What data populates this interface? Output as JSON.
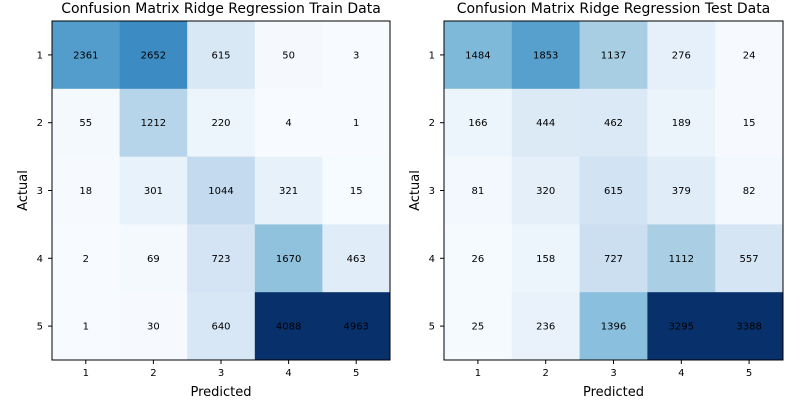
{
  "chart_data": [
    {
      "type": "heatmap",
      "title": "Confusion Matrix Ridge Regression Train Data",
      "xlabel": "Predicted",
      "ylabel": "Actual",
      "x_categories": [
        "1",
        "2",
        "3",
        "4",
        "5"
      ],
      "y_categories": [
        "1",
        "2",
        "3",
        "4",
        "5"
      ],
      "values": [
        [
          2361,
          2652,
          615,
          50,
          3
        ],
        [
          55,
          1212,
          220,
          4,
          1
        ],
        [
          18,
          301,
          1044,
          321,
          15
        ],
        [
          2,
          69,
          723,
          1670,
          463
        ],
        [
          1,
          30,
          640,
          4088,
          4963
        ]
      ],
      "colormap": "Blues",
      "vmax": 4088
    },
    {
      "type": "heatmap",
      "title": "Confusion Matrix Ridge Regression Test Data",
      "xlabel": "Predicted",
      "ylabel": "Actual",
      "x_categories": [
        "1",
        "2",
        "3",
        "4",
        "5"
      ],
      "y_categories": [
        "1",
        "2",
        "3",
        "4",
        "5"
      ],
      "values": [
        [
          1484,
          1853,
          1137,
          276,
          24
        ],
        [
          166,
          444,
          462,
          189,
          15
        ],
        [
          81,
          320,
          615,
          379,
          82
        ],
        [
          26,
          158,
          727,
          1112,
          557
        ],
        [
          25,
          236,
          1396,
          3295,
          3388
        ]
      ],
      "colormap": "Blues",
      "vmax": 3295
    }
  ]
}
